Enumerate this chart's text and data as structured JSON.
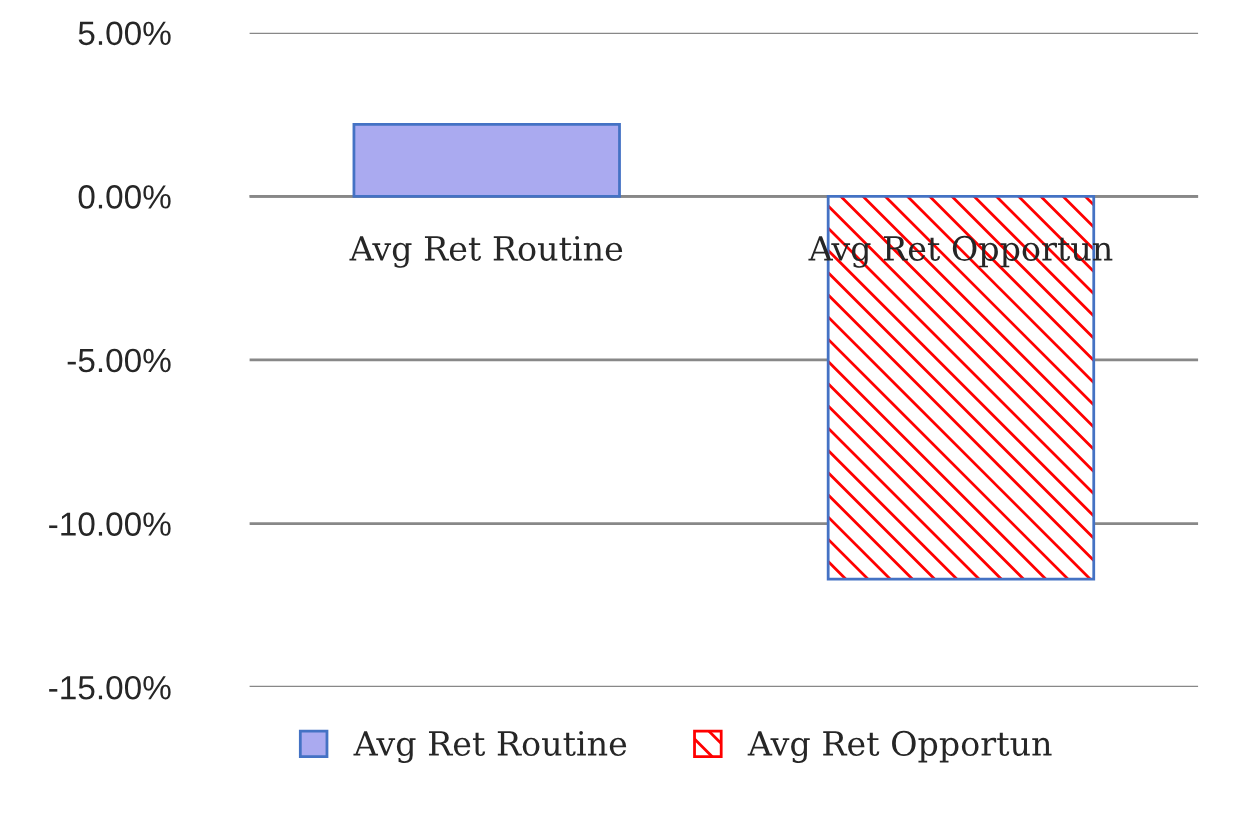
{
  "chart_data": {
    "type": "bar",
    "categories": [
      "Avg Ret Routine",
      "Avg Ret Opportun"
    ],
    "series": [
      {
        "name": "Avg Ret Routine",
        "color": "#aaaaf0",
        "values": [
          2.2,
          null
        ]
      },
      {
        "name": "Avg Ret Opportun",
        "color": "#ff0000",
        "values": [
          null,
          -11.7
        ]
      }
    ],
    "ylim": [
      -15,
      5
    ],
    "yticks": [
      {
        "value": 5,
        "label": "5.00%"
      },
      {
        "value": 0,
        "label": "0.00%"
      },
      {
        "value": -5,
        "label": "-5.00%"
      },
      {
        "value": -10,
        "label": "-10.00%"
      },
      {
        "value": -15,
        "label": "-15.00%"
      }
    ],
    "grid": "y",
    "legend": "bottom"
  }
}
